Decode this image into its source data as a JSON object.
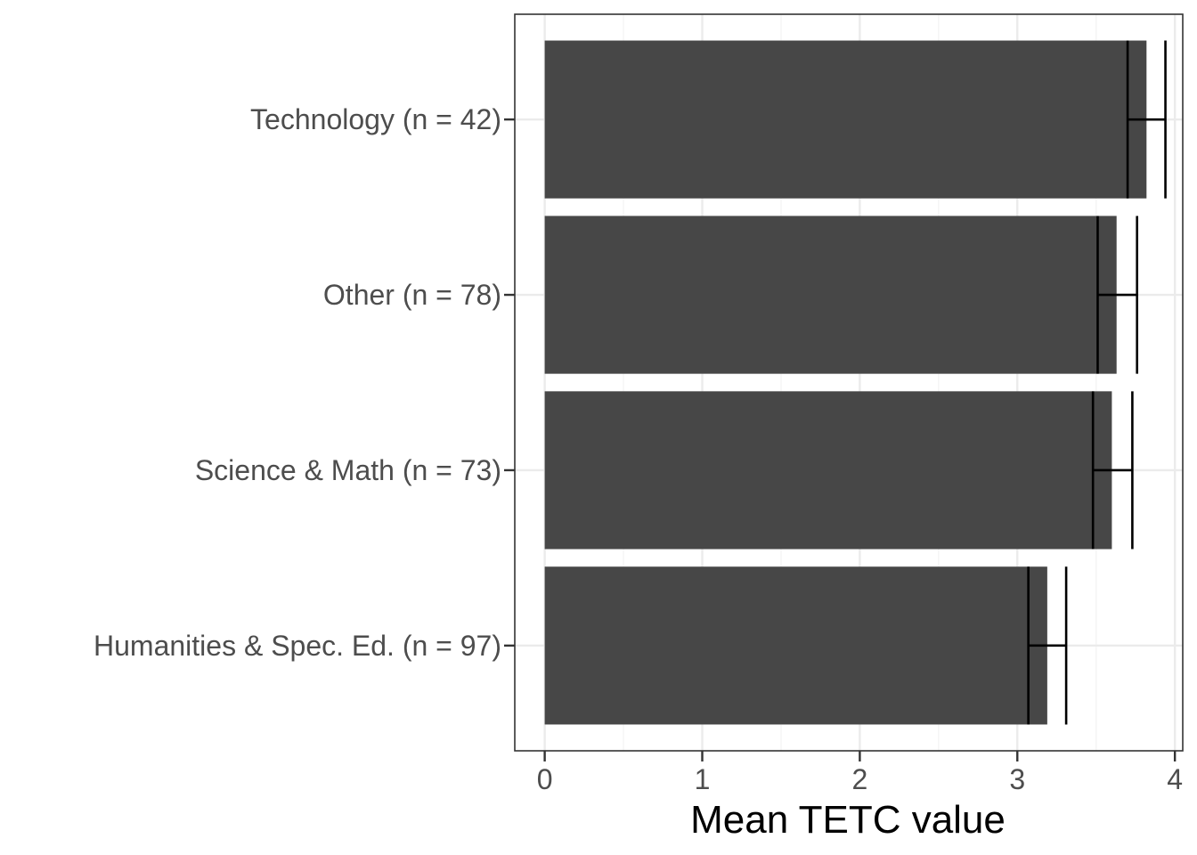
{
  "chart_data": {
    "type": "bar",
    "orientation": "horizontal",
    "categories": [
      "Technology (n = 42)",
      "Other (n = 78)",
      "Science & Math (n = 73)",
      "Humanities & Spec. Ed. (n = 97)"
    ],
    "values": [
      3.82,
      3.63,
      3.6,
      3.19
    ],
    "error_low": [
      3.7,
      3.51,
      3.48,
      3.07
    ],
    "error_high": [
      3.94,
      3.76,
      3.73,
      3.31
    ],
    "title": "",
    "xlabel": "Mean TETC value",
    "ylabel": "",
    "xlim": [
      -0.19,
      4.05
    ],
    "x_ticks": [
      "0",
      "1",
      "2",
      "3",
      "4"
    ],
    "grid": true,
    "legend": "none",
    "colors": {
      "bar": "#474747",
      "error_bar": "#000000",
      "grid_major": "#ebebeb",
      "grid_minor": "#f5f5f5",
      "panel_border": "#333333",
      "tick_text": "#4d4d4d"
    }
  }
}
